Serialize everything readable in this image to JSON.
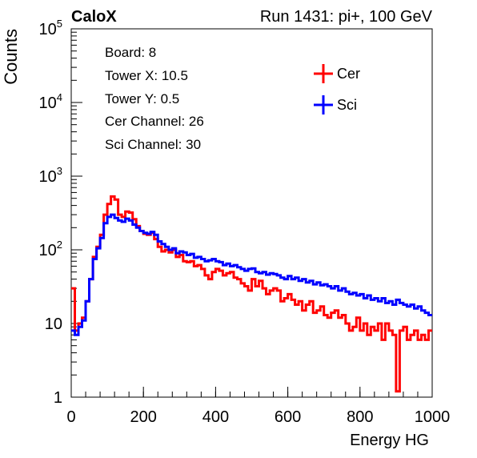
{
  "header": {
    "left_label": "CaloX",
    "right_label": "Run 1431: pi+, 100 GeV"
  },
  "info_box": {
    "lines": [
      "Board: 8",
      "Tower X: 10.5",
      "Tower Y: 0.5",
      "Cer Channel: 26",
      "Sci Channel: 30"
    ]
  },
  "colors": {
    "cer": "#ff0000",
    "sci": "#0000ff"
  },
  "chart_data": {
    "type": "line",
    "title": "",
    "xlabel": "Energy HG",
    "ylabel": "Counts",
    "xlim": [
      0,
      1000
    ],
    "ylim": [
      1,
      100000
    ],
    "y_scale": "log",
    "grid": false,
    "legend_position": "top-right",
    "x_ticks": [
      "0",
      "200",
      "400",
      "600",
      "800",
      "1000"
    ],
    "y_ticks": [
      "1",
      "10",
      "10^2",
      "10^3",
      "10^4",
      "10^5"
    ],
    "x": [
      0,
      10,
      20,
      30,
      40,
      50,
      60,
      70,
      80,
      90,
      100,
      110,
      120,
      130,
      140,
      150,
      160,
      170,
      180,
      190,
      200,
      210,
      220,
      230,
      240,
      250,
      260,
      270,
      280,
      290,
      300,
      310,
      320,
      330,
      340,
      350,
      360,
      370,
      380,
      390,
      400,
      410,
      420,
      430,
      440,
      450,
      460,
      470,
      480,
      490,
      500,
      510,
      520,
      530,
      540,
      550,
      560,
      570,
      580,
      590,
      600,
      610,
      620,
      630,
      640,
      650,
      660,
      670,
      680,
      690,
      700,
      710,
      720,
      730,
      740,
      750,
      760,
      770,
      780,
      790,
      800,
      810,
      820,
      830,
      840,
      850,
      860,
      870,
      880,
      890,
      900,
      910,
      920,
      930,
      940,
      950,
      960,
      970,
      980,
      990
    ],
    "series": [
      {
        "name": "Cer",
        "values": [
          30,
          8,
          10,
          12,
          20,
          40,
          80,
          110,
          160,
          300,
          420,
          530,
          480,
          300,
          280,
          330,
          320,
          260,
          210,
          180,
          165,
          160,
          170,
          140,
          110,
          95,
          100,
          92,
          100,
          80,
          85,
          70,
          68,
          70,
          60,
          62,
          55,
          45,
          40,
          50,
          55,
          52,
          45,
          48,
          50,
          42,
          40,
          35,
          32,
          28,
          40,
          32,
          38,
          30,
          25,
          28,
          30,
          28,
          20,
          22,
          25,
          21,
          18,
          20,
          15,
          18,
          20,
          14,
          15,
          17,
          13,
          12,
          14,
          15,
          12,
          13,
          10,
          8,
          9,
          12,
          8,
          10,
          7,
          9,
          8,
          10,
          6,
          10,
          8,
          7,
          1.2,
          8,
          9,
          6,
          7,
          8,
          6,
          7,
          6,
          8
        ]
      },
      {
        "name": "Sci",
        "values": [
          8,
          7,
          9,
          11,
          20,
          40,
          75,
          105,
          145,
          230,
          280,
          300,
          270,
          250,
          240,
          265,
          250,
          220,
          200,
          180,
          170,
          165,
          175,
          160,
          130,
          120,
          110,
          100,
          105,
          90,
          95,
          92,
          85,
          88,
          78,
          80,
          75,
          70,
          72,
          75,
          70,
          68,
          62,
          65,
          60,
          62,
          58,
          55,
          52,
          55,
          56,
          50,
          48,
          50,
          46,
          48,
          47,
          45,
          42,
          40,
          44,
          40,
          42,
          38,
          40,
          36,
          38,
          34,
          36,
          33,
          34,
          32,
          30,
          32,
          28,
          30,
          27,
          25,
          26,
          24,
          25,
          22,
          24,
          21,
          22,
          20,
          22,
          19,
          20,
          18,
          21,
          19,
          18,
          17,
          18,
          16,
          17,
          15,
          14,
          13
        ]
      }
    ]
  }
}
